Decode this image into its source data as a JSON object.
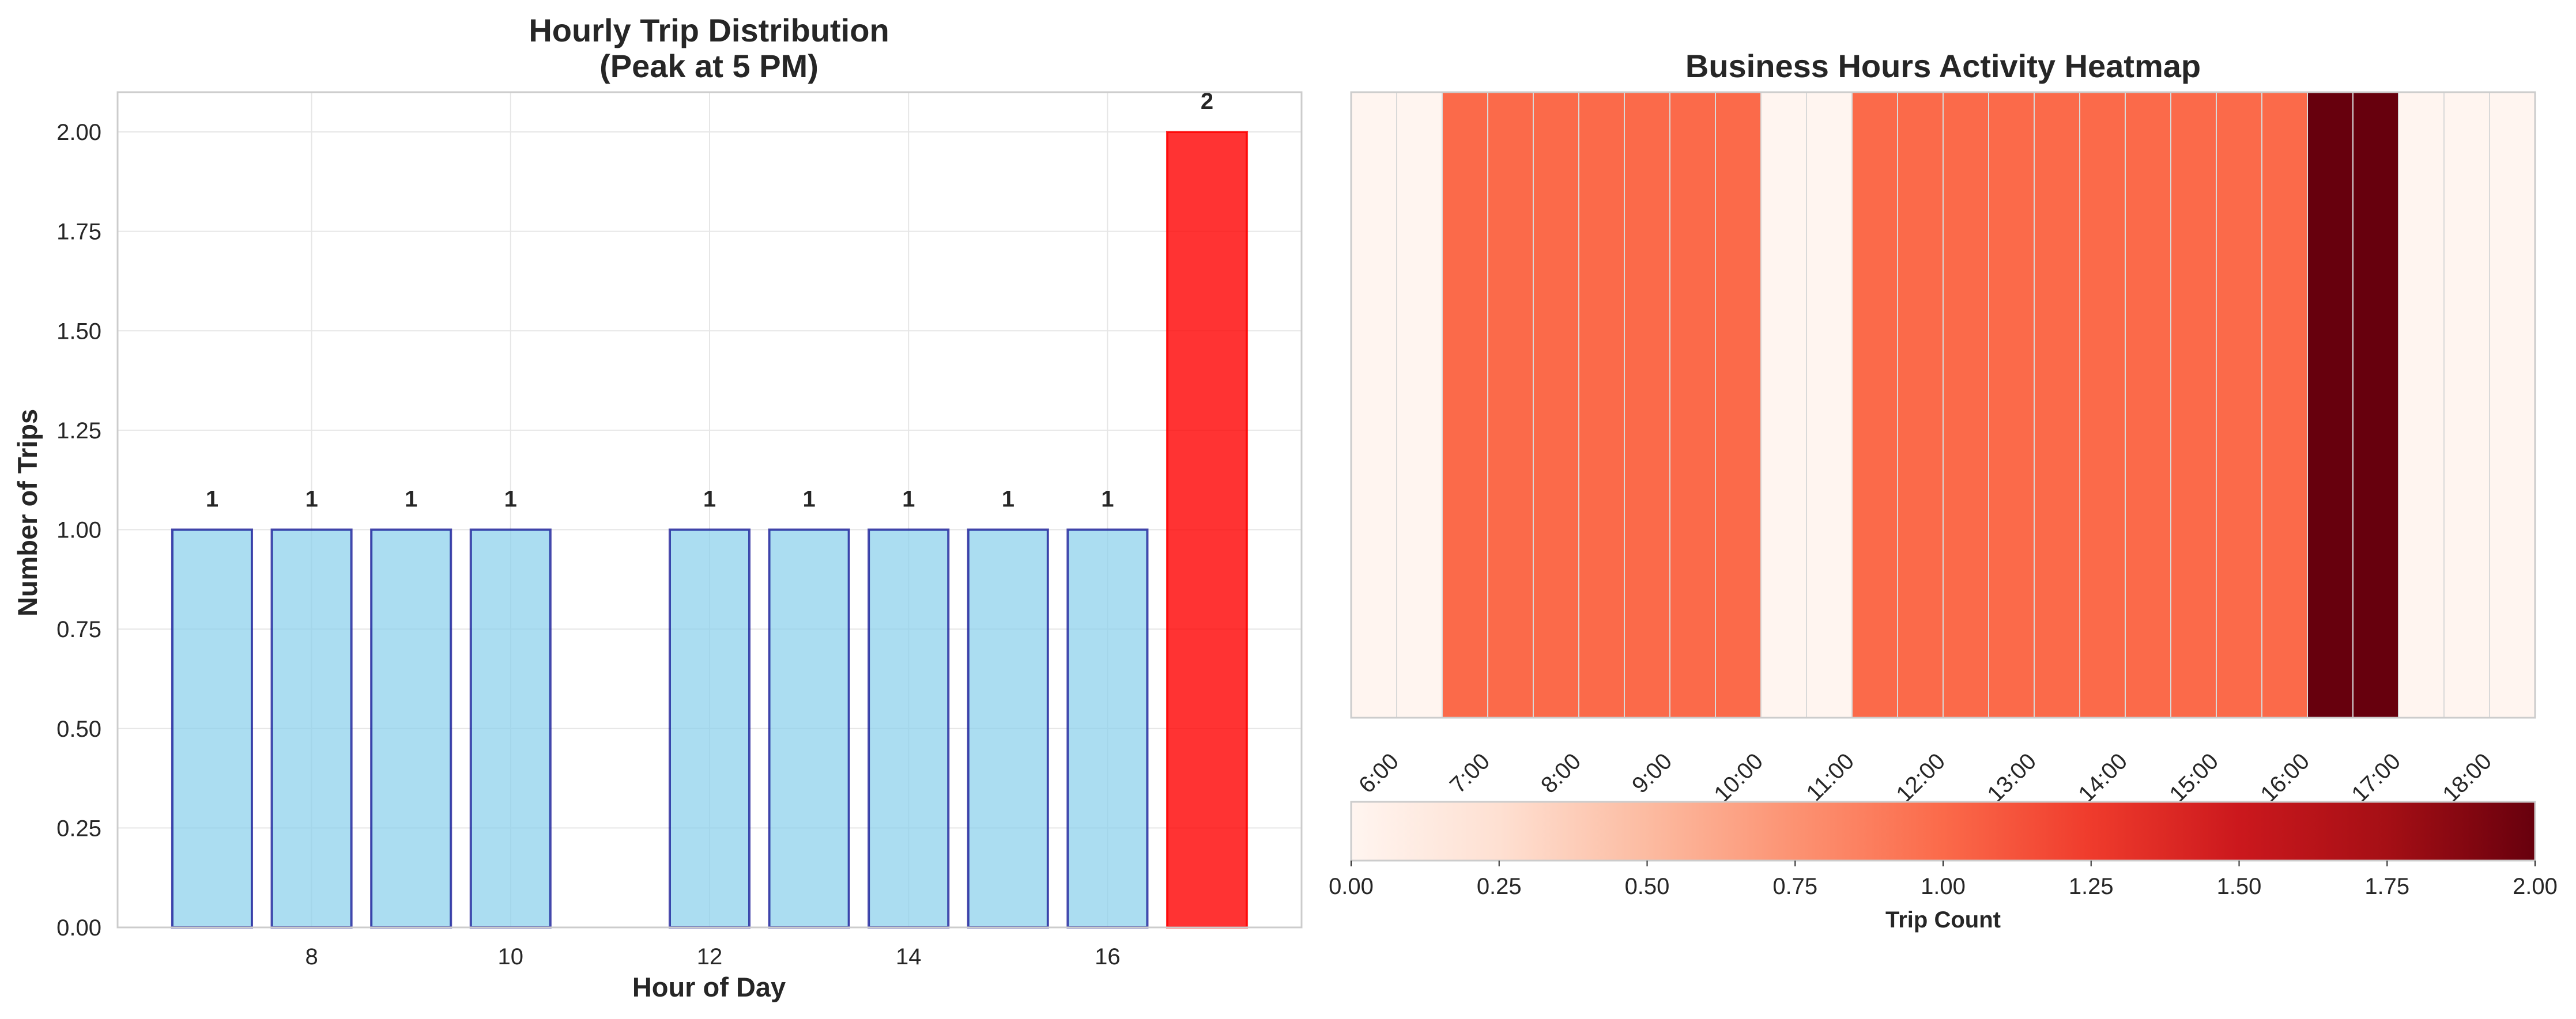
{
  "colors": {
    "bar_default": "#87CEEB",
    "bar_edge": "#00008B",
    "bar_peak": "#FF0000",
    "grid": "#E6E6E6",
    "spine": "#CCCCCC",
    "reds_colormap": [
      "#fff5f0",
      "#fee0d2",
      "#fcbba1",
      "#fc9272",
      "#fb6a4a",
      "#ef3b2c",
      "#cb181d",
      "#a50f15",
      "#67000d"
    ]
  },
  "chart_data": [
    {
      "type": "bar",
      "title": "Hourly Trip Distribution",
      "subtitle": "(Peak at 5 PM)",
      "xlabel": "Hour of Day",
      "ylabel": "Number of Trips",
      "x": [
        7,
        8,
        9,
        10,
        12,
        13,
        14,
        15,
        16,
        17
      ],
      "values": [
        1,
        1,
        1,
        1,
        1,
        1,
        1,
        1,
        1,
        2
      ],
      "data_labels": [
        "1",
        "1",
        "1",
        "1",
        "1",
        "1",
        "1",
        "1",
        "1",
        "2"
      ],
      "highlight_index": 9,
      "xlim": [
        6.05,
        17.95
      ],
      "ylim": [
        0,
        2.1
      ],
      "xticks": [
        8,
        10,
        12,
        14,
        16
      ],
      "xtick_labels": [
        "8",
        "10",
        "12",
        "14",
        "16"
      ],
      "yticks": [
        0,
        0.25,
        0.5,
        0.75,
        1.0,
        1.25,
        1.5,
        1.75,
        2.0
      ],
      "ytick_labels": [
        "0.00",
        "0.25",
        "0.50",
        "0.75",
        "1.00",
        "1.25",
        "1.50",
        "1.75",
        "2.00"
      ],
      "grid": true
    },
    {
      "type": "heatmap",
      "title": "Business Hours Activity Heatmap",
      "categories": [
        "6:00",
        "7:00",
        "8:00",
        "9:00",
        "10:00",
        "11:00",
        "12:00",
        "13:00",
        "14:00",
        "15:00",
        "16:00",
        "17:00",
        "18:00"
      ],
      "columns": [
        0,
        0,
        1,
        1,
        1,
        1,
        1,
        1,
        1,
        0,
        0,
        1,
        1,
        1,
        1,
        1,
        1,
        1,
        1,
        1,
        1,
        2,
        2,
        0,
        0,
        0
      ],
      "colorbar": {
        "label": "Trip Count",
        "range": [
          0,
          2
        ],
        "ticks": [
          "0.00",
          "0.25",
          "0.50",
          "0.75",
          "1.00",
          "1.25",
          "1.50",
          "1.75",
          "2.00"
        ]
      }
    }
  ]
}
